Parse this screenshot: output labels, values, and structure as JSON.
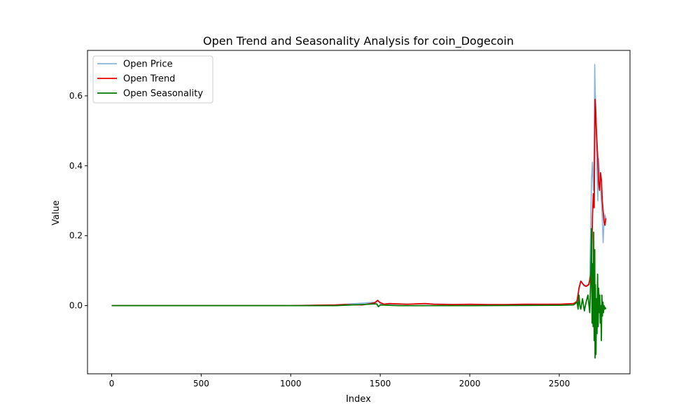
{
  "chart_data": {
    "type": "line",
    "title": "Open Trend and Seasonality Analysis for coin_Dogecoin",
    "xlabel": "Index",
    "ylabel": "Value",
    "xlim": [
      -135,
      2895
    ],
    "ylim": [
      -0.195,
      0.73
    ],
    "xticks": [
      0,
      500,
      1000,
      1500,
      2000,
      2500
    ],
    "yticks": [
      0.0,
      0.2,
      0.4,
      0.6
    ],
    "xtick_labels": [
      "0",
      "500",
      "1000",
      "1500",
      "2000",
      "2500"
    ],
    "ytick_labels": [
      "0.0",
      "0.2",
      "0.4",
      "0.6"
    ],
    "grid": false,
    "legend_position": "top-left",
    "series": [
      {
        "name": "Open Price",
        "color": "#8ab6dd",
        "x": [
          0,
          100,
          500,
          1000,
          1250,
          1480,
          1490,
          1500,
          1600,
          1750,
          2000,
          2300,
          2500,
          2590,
          2600,
          2610,
          2620,
          2640,
          2660,
          2670,
          2680,
          2685,
          2690,
          2695,
          2698,
          2700,
          2705,
          2710,
          2715,
          2720,
          2725,
          2730,
          2735,
          2740,
          2745,
          2750,
          2755,
          2760
        ],
        "y": [
          0.0,
          0.0,
          0.0,
          0.0,
          0.002,
          0.01,
          0.015,
          0.005,
          0.004,
          0.005,
          0.003,
          0.003,
          0.004,
          0.005,
          0.02,
          0.045,
          0.07,
          0.055,
          0.06,
          0.07,
          0.36,
          0.41,
          0.33,
          0.45,
          0.69,
          0.63,
          0.55,
          0.4,
          0.3,
          0.42,
          0.38,
          0.33,
          0.3,
          0.25,
          0.18,
          0.24,
          0.26,
          0.25
        ]
      },
      {
        "name": "Open Trend",
        "color": "#e50000",
        "x": [
          0,
          500,
          1000,
          1250,
          1300,
          1400,
          1470,
          1485,
          1495,
          1520,
          1550,
          1600,
          1650,
          1700,
          1750,
          1800,
          1900,
          2000,
          2100,
          2200,
          2300,
          2400,
          2500,
          2580,
          2600,
          2610,
          2620,
          2635,
          2650,
          2665,
          2680,
          2685,
          2690,
          2695,
          2700,
          2703,
          2708,
          2715,
          2720,
          2725,
          2730,
          2735,
          2740,
          2745,
          2750,
          2755,
          2760
        ],
        "y": [
          0.0,
          0.0,
          0.0,
          0.002,
          0.003,
          0.002,
          0.008,
          0.015,
          0.01,
          0.004,
          0.006,
          0.005,
          0.004,
          0.005,
          0.006,
          0.004,
          0.003,
          0.004,
          0.003,
          0.003,
          0.004,
          0.004,
          0.004,
          0.006,
          0.012,
          0.05,
          0.07,
          0.06,
          0.055,
          0.06,
          0.1,
          0.25,
          0.32,
          0.28,
          0.59,
          0.56,
          0.49,
          0.42,
          0.35,
          0.33,
          0.38,
          0.36,
          0.3,
          0.27,
          0.24,
          0.23,
          0.25
        ]
      },
      {
        "name": "Open Seasonality",
        "color": "#007a00",
        "x": [
          0,
          500,
          1000,
          1250,
          1480,
          1490,
          1500,
          1600,
          2000,
          2500,
          2580,
          2600,
          2605,
          2610,
          2615,
          2620,
          2630,
          2640,
          2650,
          2660,
          2670,
          2675,
          2680,
          2683,
          2686,
          2689,
          2692,
          2695,
          2698,
          2700,
          2702,
          2705,
          2708,
          2711,
          2714,
          2717,
          2720,
          2723,
          2726,
          2729,
          2732,
          2735,
          2738,
          2741,
          2744,
          2747,
          2750,
          2753,
          2756,
          2760
        ],
        "y": [
          0.0,
          0.0,
          0.0,
          0.0,
          0.005,
          -0.003,
          0.002,
          0.0,
          0.0,
          0.001,
          0.002,
          0.01,
          -0.01,
          0.03,
          0.0,
          -0.01,
          0.02,
          -0.015,
          0.01,
          0.03,
          -0.02,
          0.06,
          0.22,
          -0.05,
          0.12,
          -0.06,
          0.21,
          -0.1,
          0.16,
          -0.15,
          0.06,
          -0.14,
          0.02,
          -0.08,
          0.09,
          -0.06,
          0.05,
          -0.02,
          0.03,
          -0.05,
          0.0,
          -0.1,
          0.03,
          -0.03,
          0.01,
          -0.02,
          0.0,
          -0.01,
          -0.005,
          -0.01
        ]
      }
    ]
  }
}
